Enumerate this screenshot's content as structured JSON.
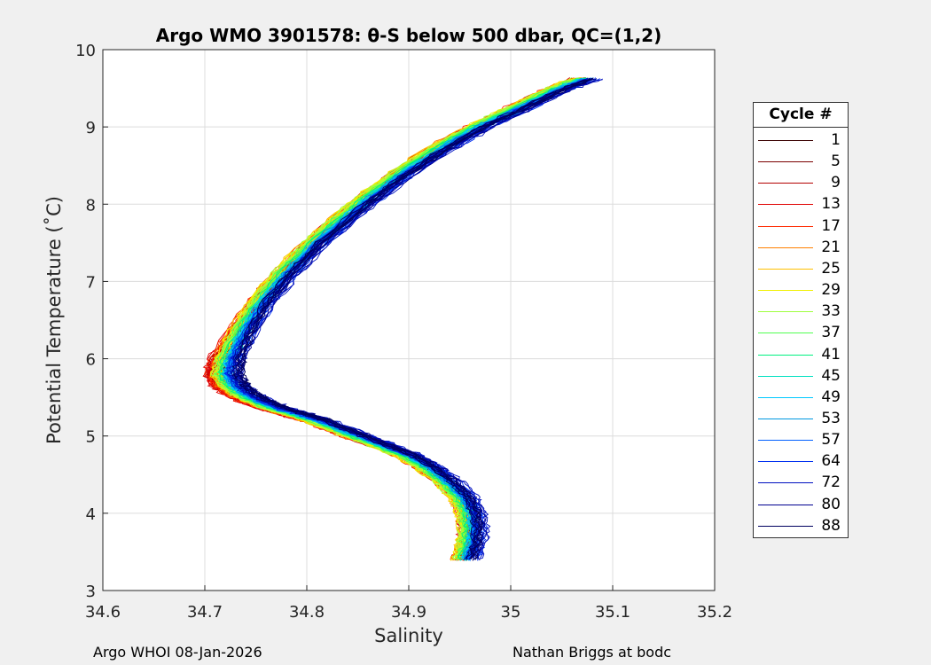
{
  "chart_data": {
    "type": "line",
    "title": "Argo WMO 3901578: θ-S below 500 dbar,  QC=(1,2)",
    "xlabel": "Salinity",
    "ylabel": "Potential Temperature (˚C)",
    "xlim": [
      34.6,
      35.2
    ],
    "ylim": [
      3,
      10
    ],
    "xticks": [
      "34.6",
      "34.7",
      "34.8",
      "34.9",
      "35",
      "35.1",
      "35.2"
    ],
    "yticks": [
      "3",
      "4",
      "5",
      "6",
      "7",
      "8",
      "9",
      "10"
    ],
    "grid": true,
    "legend_title": "Cycle #",
    "legend_position": "outside-right",
    "series": [
      {
        "name": "1",
        "color": "#3a0000",
        "offset": 0.0,
        "salty_offset": 0.0
      },
      {
        "name": "5",
        "color": "#7a0000",
        "offset": -0.01,
        "salty_offset": -0.004
      },
      {
        "name": "9",
        "color": "#b40000",
        "offset": -0.012,
        "salty_offset": -0.006
      },
      {
        "name": "13",
        "color": "#e00000",
        "offset": -0.014,
        "salty_offset": -0.008
      },
      {
        "name": "17",
        "color": "#ff2a00",
        "offset": -0.012,
        "salty_offset": -0.01
      },
      {
        "name": "21",
        "color": "#ff8000",
        "offset": -0.01,
        "salty_offset": -0.012
      },
      {
        "name": "25",
        "color": "#ffc000",
        "offset": -0.008,
        "salty_offset": -0.012
      },
      {
        "name": "29",
        "color": "#f0f000",
        "offset": -0.006,
        "salty_offset": -0.01
      },
      {
        "name": "33",
        "color": "#a0ff40",
        "offset": -0.004,
        "salty_offset": -0.008
      },
      {
        "name": "37",
        "color": "#50ff50",
        "offset": -0.002,
        "salty_offset": -0.006
      },
      {
        "name": "41",
        "color": "#00f080",
        "offset": 0.0,
        "salty_offset": -0.004
      },
      {
        "name": "45",
        "color": "#00e0c0",
        "offset": 0.002,
        "salty_offset": -0.002
      },
      {
        "name": "49",
        "color": "#00c8ff",
        "offset": 0.004,
        "salty_offset": 0.0
      },
      {
        "name": "53",
        "color": "#0098e0",
        "offset": 0.006,
        "salty_offset": 0.002
      },
      {
        "name": "57",
        "color": "#0060ff",
        "offset": 0.008,
        "salty_offset": 0.004
      },
      {
        "name": "64",
        "color": "#0030f0",
        "offset": 0.01,
        "salty_offset": 0.006
      },
      {
        "name": "72",
        "color": "#0010c0",
        "offset": 0.012,
        "salty_offset": 0.008
      },
      {
        "name": "80",
        "color": "#000090",
        "offset": 0.014,
        "salty_offset": 0.006
      },
      {
        "name": "88",
        "color": "#000060",
        "offset": 0.016,
        "salty_offset": 0.004
      }
    ],
    "base_profile": {
      "salinity": [
        34.957,
        34.962,
        34.964,
        34.962,
        34.955,
        34.94,
        34.92,
        34.9,
        34.87,
        34.84,
        34.81,
        34.79,
        34.77,
        34.75,
        34.735,
        34.725,
        34.718,
        34.722,
        34.735,
        34.755,
        34.78,
        34.81,
        34.85,
        34.89,
        34.93,
        34.97,
        35.01,
        35.05,
        35.08
      ],
      "potential_temperature": [
        3.4,
        3.6,
        3.8,
        4.0,
        4.2,
        4.4,
        4.6,
        4.75,
        4.9,
        5.05,
        5.2,
        5.28,
        5.35,
        5.45,
        5.55,
        5.65,
        5.8,
        6.0,
        6.3,
        6.7,
        7.1,
        7.5,
        7.95,
        8.35,
        8.7,
        9.0,
        9.25,
        9.5,
        9.65
      ]
    }
  },
  "footer": {
    "left": "Argo WHOI 08-Jan-2026",
    "right": "Nathan Briggs at bodc"
  }
}
